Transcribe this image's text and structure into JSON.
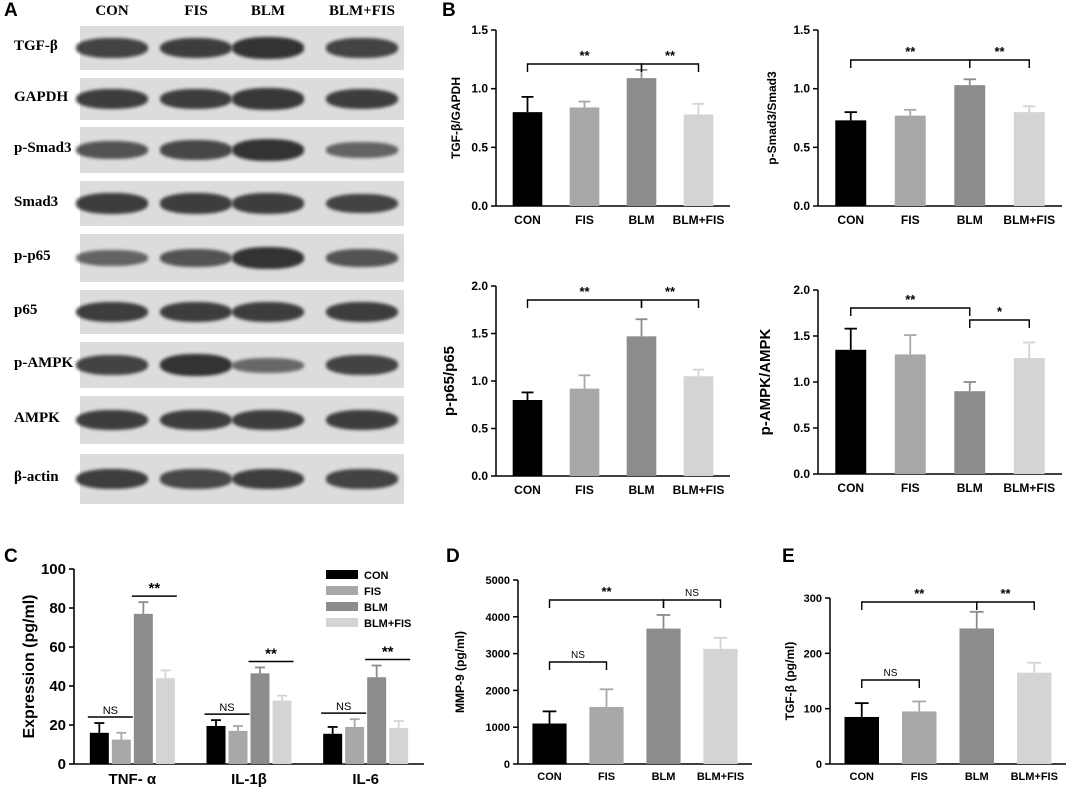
{
  "panel_labels": [
    "A",
    "B",
    "C",
    "D",
    "E"
  ],
  "blot": {
    "lanes": [
      "CON",
      "FIS",
      "BLM",
      "BLM+FIS"
    ],
    "rows": [
      {
        "label": "TGF-β",
        "intensity": [
          0.85,
          0.9,
          1.0,
          0.85
        ]
      },
      {
        "label": "GAPDH",
        "intensity": [
          0.9,
          0.9,
          0.95,
          0.9
        ]
      },
      {
        "label": "p-Smad3",
        "intensity": [
          0.7,
          0.8,
          1.0,
          0.55
        ]
      },
      {
        "label": "Smad3",
        "intensity": [
          0.9,
          0.9,
          0.9,
          0.85
        ]
      },
      {
        "label": "p-p65",
        "intensity": [
          0.55,
          0.7,
          1.0,
          0.7
        ]
      },
      {
        "label": "p65",
        "intensity": [
          0.9,
          0.9,
          0.9,
          0.9
        ]
      },
      {
        "label": "p-AMPK",
        "intensity": [
          0.85,
          1.0,
          0.5,
          0.85
        ]
      },
      {
        "label": "AMPK",
        "intensity": [
          0.9,
          0.9,
          0.9,
          0.9
        ]
      },
      {
        "label": "β-actin",
        "intensity": [
          0.9,
          0.8,
          0.9,
          0.85
        ]
      }
    ]
  },
  "colors": {
    "CON": "#000000",
    "FIS": "#a8a8a8",
    "BLM": "#8c8c8c",
    "BLM+FIS": "#d4d4d4"
  },
  "chart_data": [
    {
      "type": "bar",
      "ylabel": "TGF-β/GAPDH",
      "categories": [
        "CON",
        "FIS",
        "BLM",
        "BLM+FIS"
      ],
      "values": [
        0.8,
        0.84,
        1.09,
        0.78
      ],
      "errors": [
        0.13,
        0.05,
        0.07,
        0.09
      ],
      "ylim": [
        0,
        1.5
      ],
      "yticks": [
        "0.0",
        "0.5",
        "1.0",
        "1.5"
      ],
      "significance": [
        {
          "from": 0,
          "to": 2,
          "label": "**"
        },
        {
          "from": 2,
          "to": 3,
          "label": "**"
        }
      ]
    },
    {
      "type": "bar",
      "ylabel": "p-Smad3/Smad3",
      "categories": [
        "CON",
        "FIS",
        "BLM",
        "BLM+FIS"
      ],
      "values": [
        0.73,
        0.77,
        1.03,
        0.8
      ],
      "errors": [
        0.07,
        0.05,
        0.05,
        0.05
      ],
      "ylim": [
        0,
        1.5
      ],
      "yticks": [
        "0.0",
        "0.5",
        "1.0",
        "1.5"
      ],
      "significance": [
        {
          "from": 0,
          "to": 2,
          "label": "**"
        },
        {
          "from": 2,
          "to": 3,
          "label": "**"
        }
      ]
    },
    {
      "type": "bar",
      "ylabel": "p-p65/p65",
      "categories": [
        "CON",
        "FIS",
        "BLM",
        "BLM+FIS"
      ],
      "values": [
        0.8,
        0.92,
        1.47,
        1.05
      ],
      "errors": [
        0.08,
        0.14,
        0.18,
        0.07
      ],
      "ylim": [
        0,
        2.0
      ],
      "yticks": [
        "0.0",
        "0.5",
        "1.0",
        "1.5",
        "2.0"
      ],
      "significance": [
        {
          "from": 0,
          "to": 2,
          "label": "**"
        },
        {
          "from": 2,
          "to": 3,
          "label": "**"
        }
      ]
    },
    {
      "type": "bar",
      "ylabel": "p-AMPK/AMPK",
      "categories": [
        "CON",
        "FIS",
        "BLM",
        "BLM+FIS"
      ],
      "values": [
        1.35,
        1.3,
        0.9,
        1.26
      ],
      "errors": [
        0.23,
        0.21,
        0.1,
        0.17
      ],
      "ylim": [
        0,
        2.0
      ],
      "yticks": [
        "0.0",
        "0.5",
        "1.0",
        "1.5",
        "2.0"
      ],
      "significance": [
        {
          "from": 0,
          "to": 2,
          "label": "**"
        },
        {
          "from": 2,
          "to": 3,
          "label": "*"
        }
      ]
    },
    {
      "type": "bar",
      "ylabel": "Expression (pg/ml)",
      "categories": [
        "TNF- α",
        "IL-1β",
        "IL-6"
      ],
      "series": [
        {
          "name": "CON",
          "values": [
            16,
            19.5,
            15.5
          ],
          "errors": [
            5,
            3,
            3.5
          ]
        },
        {
          "name": "FIS",
          "values": [
            12.5,
            17,
            19
          ],
          "errors": [
            3.5,
            2.5,
            4
          ]
        },
        {
          "name": "BLM",
          "values": [
            77,
            46.5,
            44.5
          ],
          "errors": [
            6,
            3,
            6
          ]
        },
        {
          "name": "BLM+FIS",
          "values": [
            44,
            32.5,
            18.5
          ],
          "errors": [
            4,
            2.5,
            3.5
          ]
        }
      ],
      "ylim": [
        0,
        100
      ],
      "yticks": [
        "0",
        "20",
        "40",
        "60",
        "80",
        "100"
      ],
      "significance": [
        {
          "group": 0,
          "from": 0,
          "to": 1,
          "label": "NS"
        },
        {
          "group": 0,
          "from": 2,
          "to": 3,
          "label": "**"
        },
        {
          "group": 1,
          "from": 0,
          "to": 1,
          "label": "NS"
        },
        {
          "group": 1,
          "from": 2,
          "to": 3,
          "label": "**"
        },
        {
          "group": 2,
          "from": 0,
          "to": 1,
          "label": "NS"
        },
        {
          "group": 2,
          "from": 2,
          "to": 3,
          "label": "**"
        }
      ],
      "legend": "top-right"
    },
    {
      "type": "bar",
      "ylabel": "MMP-9 (pg/ml)",
      "categories": [
        "CON",
        "FIS",
        "BLM",
        "BLM+FIS"
      ],
      "values": [
        1100,
        1550,
        3680,
        3130
      ],
      "errors": [
        330,
        480,
        370,
        300
      ],
      "ylim": [
        0,
        5000
      ],
      "yticks": [
        "0",
        "1000",
        "2000",
        "3000",
        "4000",
        "5000"
      ],
      "significance": [
        {
          "from": 0,
          "to": 2,
          "label": "**"
        },
        {
          "from": 2,
          "to": 3,
          "label": "NS"
        },
        {
          "from": 0,
          "to": 1,
          "label": "NS"
        }
      ]
    },
    {
      "type": "bar",
      "ylabel": "TGF-β (pg/ml)",
      "categories": [
        "CON",
        "FIS",
        "BLM",
        "BLM+FIS"
      ],
      "values": [
        85,
        95,
        245,
        165
      ],
      "errors": [
        25,
        18,
        30,
        18
      ],
      "ylim": [
        0,
        300
      ],
      "yticks": [
        "0",
        "100",
        "200",
        "300"
      ],
      "significance": [
        {
          "from": 0,
          "to": 2,
          "label": "**"
        },
        {
          "from": 2,
          "to": 3,
          "label": "**"
        },
        {
          "from": 0,
          "to": 1,
          "label": "NS"
        }
      ]
    }
  ]
}
